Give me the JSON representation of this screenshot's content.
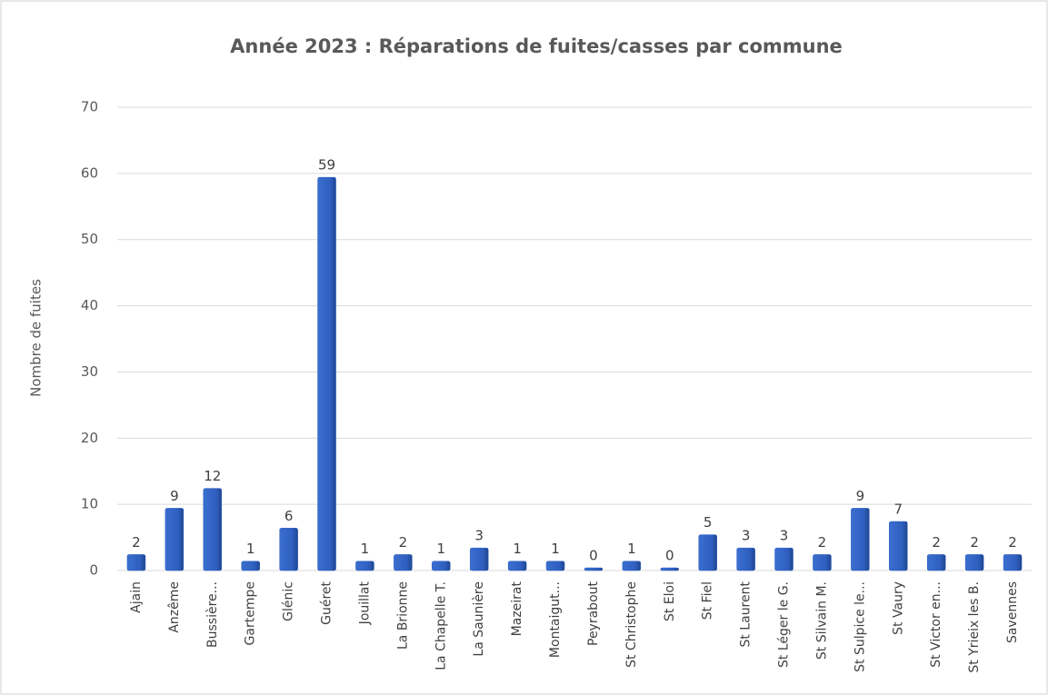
{
  "chart_data": {
    "type": "bar",
    "title": "Année 2023 : Réparations de fuites/casses par commune",
    "y_label": "Nombre de fuites",
    "categories": [
      "Ajain",
      "Anzême",
      "Bussière...",
      "Gartempe",
      "Glénic",
      "Guéret",
      "Jouillat",
      "La Brionne",
      "La Chapelle T.",
      "La Saunière",
      "Mazeirat",
      "Montaigut...",
      "Peyrabout",
      "St Christophe",
      "St Eloi",
      "St Fiel",
      "St Laurent",
      "St Léger le G.",
      "St Silvain M.",
      "St Sulpice le...",
      "St Vaury",
      "St Victor en...",
      "St Yrieix les B.",
      "Savennes"
    ],
    "values": [
      2,
      9,
      12,
      1,
      6,
      59,
      1,
      2,
      1,
      3,
      1,
      1,
      0,
      1,
      0,
      5,
      3,
      3,
      2,
      9,
      7,
      2,
      2,
      2
    ],
    "color": "#2f5fbf",
    "ylim": [
      0,
      70
    ],
    "yticks": [
      0,
      10,
      20,
      30,
      40,
      50,
      60,
      70
    ],
    "grid": true
  }
}
